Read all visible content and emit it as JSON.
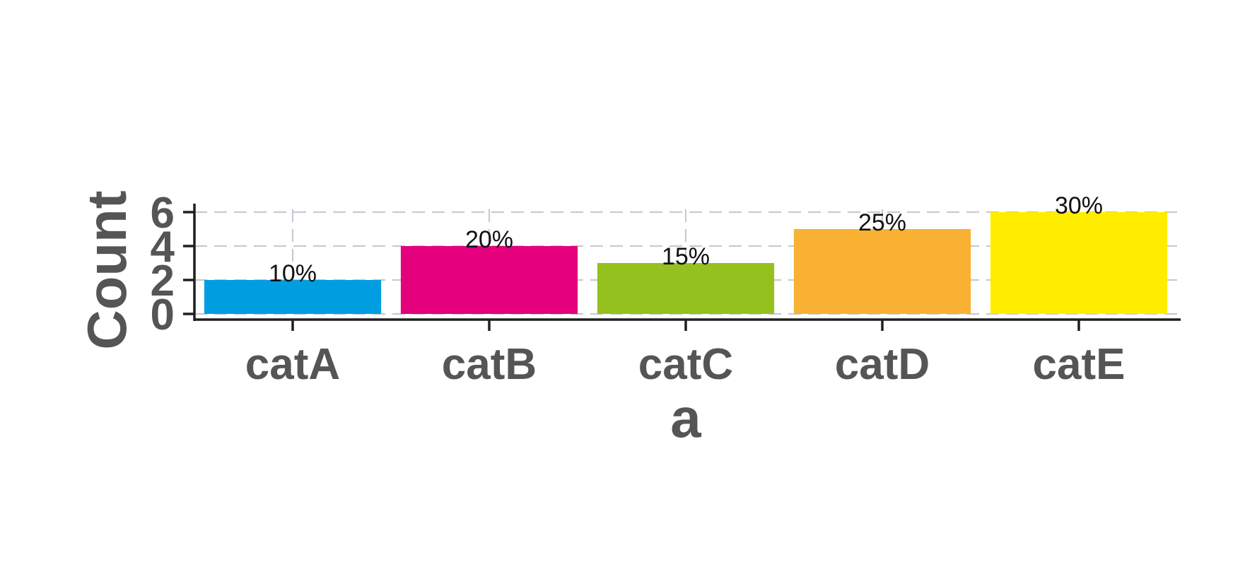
{
  "chart_data": {
    "type": "bar",
    "categories": [
      "catA",
      "catB",
      "catC",
      "catD",
      "catE"
    ],
    "values": [
      2,
      4,
      3,
      5,
      6
    ],
    "data_labels": [
      "10%",
      "20%",
      "15%",
      "25%",
      "30%"
    ],
    "colors": [
      "#009ee0",
      "#e5007d",
      "#95c11f",
      "#f8b133",
      "#ffed00"
    ],
    "xlabel": "a",
    "ylabel": "Count",
    "yticks": [
      0,
      2,
      4,
      6
    ],
    "ytick_labels": [
      "0",
      "2",
      "4",
      "6"
    ],
    "ylim": [
      0,
      6
    ],
    "grid": true,
    "grid_style": "dashed",
    "legend": "none"
  }
}
